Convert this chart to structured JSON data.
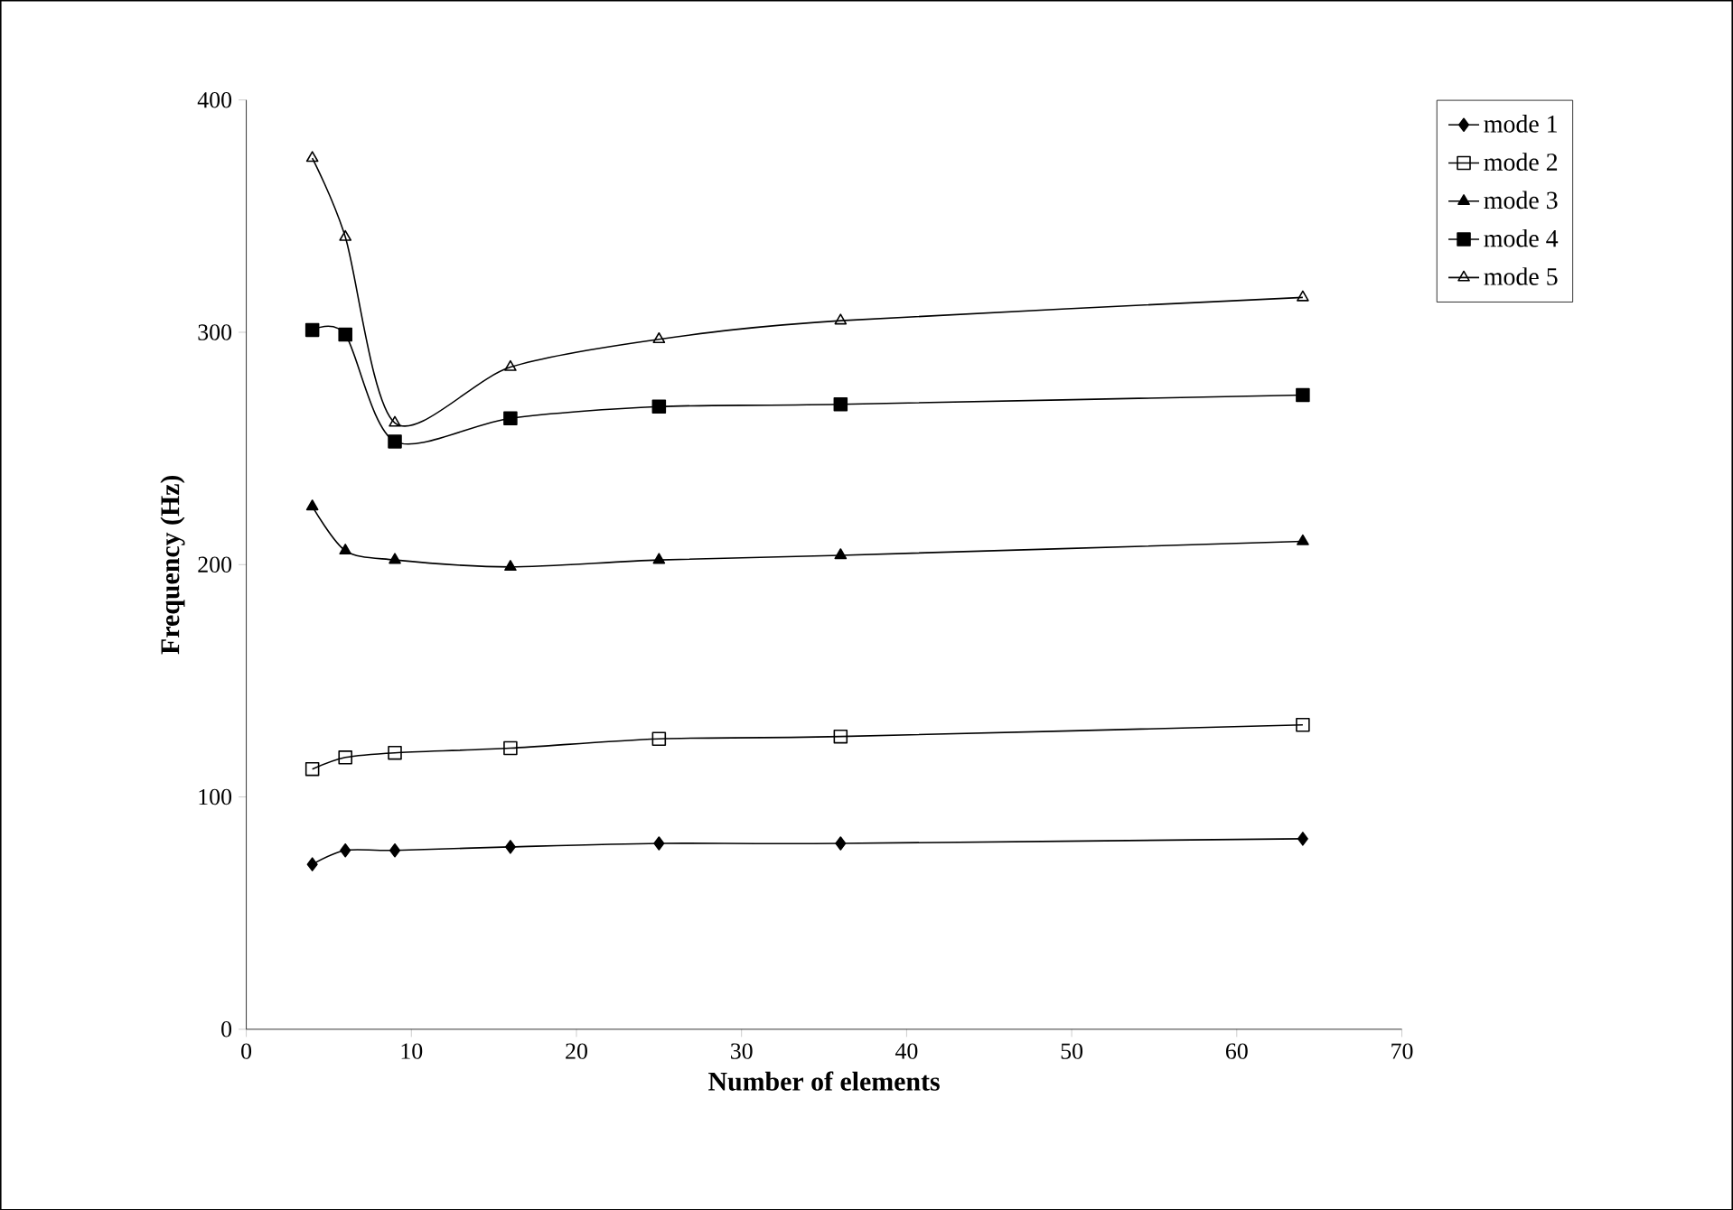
{
  "chart_data": {
    "type": "line",
    "xlabel": "Number of elements",
    "ylabel": "Frequency (Hz)",
    "x": [
      4,
      6,
      9,
      16,
      25,
      36,
      64
    ],
    "series": [
      {
        "name": "mode 1",
        "color": "#000000",
        "marker": "diamond",
        "values": [
          71,
          77,
          77,
          78.5,
          80,
          80,
          82
        ]
      },
      {
        "name": "mode 2",
        "color": "#000000",
        "marker": "square",
        "values": [
          112,
          117,
          119,
          121,
          125,
          126,
          131
        ]
      },
      {
        "name": "mode 3",
        "color": "#000000",
        "marker": "triangle",
        "values": [
          225,
          206,
          202,
          199,
          202,
          204,
          210
        ]
      },
      {
        "name": "mode 4",
        "color": "#000000",
        "marker": "square",
        "values": [
          301,
          299,
          253,
          263,
          268,
          269,
          273
        ]
      },
      {
        "name": "mode 5",
        "color": "#000000",
        "marker": "triangle",
        "values": [
          375,
          341,
          261,
          285,
          297,
          305,
          315
        ]
      }
    ],
    "xlim": [
      0,
      70
    ],
    "xticks": [
      0,
      10,
      20,
      30,
      40,
      50,
      60,
      70
    ],
    "ylim": [
      0,
      400
    ],
    "yticks": [
      0,
      100,
      200,
      300,
      400
    ],
    "legend": "right",
    "grid": false,
    "line_style": "solid"
  }
}
